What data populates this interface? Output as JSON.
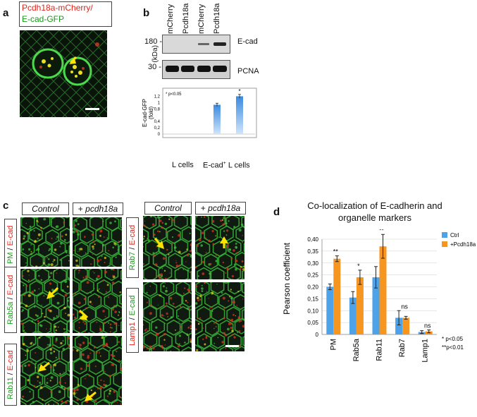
{
  "panel_a": {
    "letter": "a",
    "legend_line1": "Pcdh18a-mCherry/",
    "legend_line2": "E-cad-GFP",
    "legend_red": "#e0241b",
    "legend_green": "#1a9a1a"
  },
  "panel_b": {
    "letter": "b",
    "lane_labels": [
      "mCherry",
      "Pcdh18a",
      "mCherry",
      "Pcdh18a"
    ],
    "marker_180": "180 -",
    "marker_30": "30 -",
    "kda": "(kDa)",
    "blot1_label": "E-cad",
    "blot2_label": "PCNA",
    "chart_data": {
      "type": "bar",
      "note": "* p<0.05",
      "ylabel": "E-cad-GFP (fold)",
      "ylabel_line1": "E-cad-GFP",
      "ylabel_line2": "(fold)",
      "yticks": [
        "0",
        "0,2",
        "0,4",
        "0,8",
        "1",
        "1,2"
      ],
      "ylim": [
        0,
        1.3
      ],
      "groups": [
        "L cells",
        "E-cad+ L cells"
      ],
      "group1_label": "L cells",
      "group2_label_pre": "E-cad",
      "group2_label_sup": "+",
      "group2_label_post": " L cells",
      "categories": [
        "mCherry",
        "Pcdh18a",
        "mCherry",
        "Pcdh18a"
      ],
      "values": [
        0,
        0,
        0.93,
        1.2
      ],
      "errors": [
        0,
        0,
        0.05,
        0.06
      ],
      "significance": [
        "",
        "",
        "",
        "*"
      ]
    }
  },
  "panel_c": {
    "letter": "c",
    "col_control": "Control",
    "col_treat_plus": "+ ",
    "col_treat_gene": "pcdh18a",
    "rows_left": [
      {
        "green": "PM",
        "sep": " / ",
        "red": "E-cad"
      },
      {
        "green": "Rab5a",
        "sep": " / ",
        "red": "E-cad"
      },
      {
        "green": "Rab11",
        "sep": " / ",
        "red": "E-cad"
      }
    ],
    "rows_right": [
      {
        "green": "Rab7",
        "sep": " / ",
        "red": "E-cad"
      },
      {
        "green": "E-cad",
        "sep": " / ",
        "red": "Lamp1",
        "red_first": true
      }
    ]
  },
  "panel_d": {
    "letter": "d",
    "chart_data": {
      "type": "bar",
      "title": "Co-localization of E-cadherin and organelle markers",
      "title_line1": "Co-localization of E-cadherin and",
      "title_line2": "organelle markers",
      "ylabel": "Pearson coefficient",
      "yticks": [
        "0",
        "0,05",
        "0,10",
        "0,15",
        "0,20",
        "0,25",
        "0,30",
        "0,35",
        "0,40"
      ],
      "ylim": [
        0,
        0.4
      ],
      "categories": [
        "PM",
        "Rab5a",
        "Rab11",
        "Rab7",
        "Lamp1"
      ],
      "series": [
        {
          "name": "Ctrl",
          "color": "#4ea3e8",
          "values": [
            0.2,
            0.155,
            0.24,
            0.07,
            0.01
          ],
          "errors": [
            0.012,
            0.025,
            0.045,
            0.03,
            0.006
          ]
        },
        {
          "name": "+Pcdh18a",
          "color": "#f6951f",
          "values": [
            0.318,
            0.24,
            0.37,
            0.07,
            0.013
          ],
          "errors": [
            0.012,
            0.03,
            0.05,
            0.006,
            0.006
          ]
        }
      ],
      "significance": [
        "**",
        "*",
        "**",
        "ns",
        "ns"
      ],
      "legend_position": "top-right",
      "note1": "* p<0.05",
      "note2": "**p<0.01"
    }
  }
}
